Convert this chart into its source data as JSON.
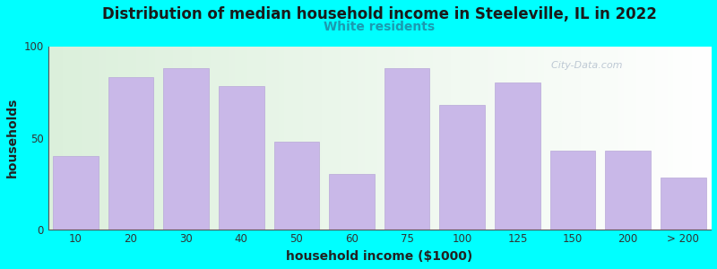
{
  "title": "Distribution of median household income in Steeleville, IL in 2022",
  "subtitle": "White residents",
  "xlabel": "household income ($1000)",
  "ylabel": "households",
  "bar_color": "#c9b8e8",
  "background_color": "#00ffff",
  "ylim": [
    0,
    100
  ],
  "yticks": [
    0,
    50,
    100
  ],
  "categories": [
    "10",
    "20",
    "30",
    "40",
    "50",
    "60",
    "75",
    "100",
    "125",
    "150",
    "200",
    "> 200"
  ],
  "heights": [
    40,
    83,
    88,
    78,
    48,
    30,
    88,
    68,
    80,
    43,
    43,
    28
  ],
  "watermark": "  City-Data.com",
  "title_fontsize": 12,
  "subtitle_fontsize": 10,
  "subtitle_color": "#1a9ab0",
  "axis_label_fontsize": 10
}
